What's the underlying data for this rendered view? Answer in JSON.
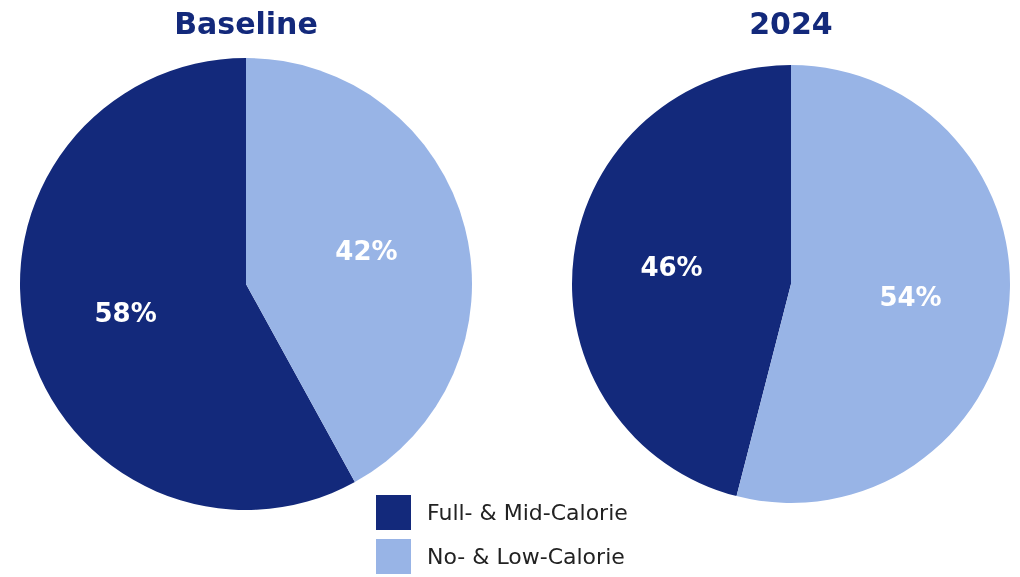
{
  "chart_data": [
    {
      "type": "pie",
      "title": "Baseline",
      "categories": [
        "Full- & Mid-Calorie",
        "No- & Low-Calorie"
      ],
      "values": [
        58,
        42
      ],
      "colors": [
        "#13297b",
        "#98b4e6"
      ],
      "value_labels": [
        "58%",
        "42%"
      ],
      "legend": "bottom"
    },
    {
      "type": "pie",
      "title": "2024",
      "categories": [
        null,
        null
      ],
      "values": [
        46,
        54
      ],
      "colors": [
        "#13297b",
        "#98b4e6"
      ],
      "value_labels": [
        "46%",
        "54%"
      ]
    }
  ]
}
